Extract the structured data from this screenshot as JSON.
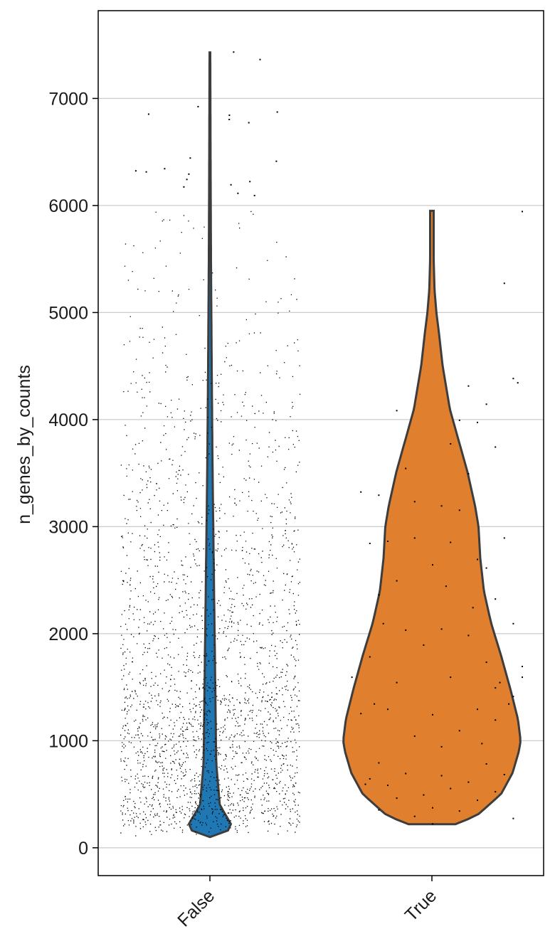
{
  "chart_data": {
    "type": "violin",
    "ylabel": "n_genes_by_counts",
    "xlabel": "",
    "title": "",
    "categories": [
      "False",
      "True"
    ],
    "ylim": [
      -260,
      7820
    ],
    "yticks": [
      0,
      1000,
      2000,
      3000,
      4000,
      5000,
      6000,
      7000
    ],
    "grid": "horizontal",
    "legend": "none",
    "colors": {
      "False": "#1f77b4",
      "True": "#e07f2d",
      "outline": "#3d3d3d",
      "points": "#000000"
    },
    "series": [
      {
        "name": "False",
        "min": 100,
        "max": 7430,
        "point_count": 30000,
        "point_density": [
          [
            200,
            1.0
          ],
          [
            1400,
            1.0
          ],
          [
            1600,
            0.55
          ],
          [
            2000,
            0.5
          ],
          [
            2500,
            0.42
          ],
          [
            3000,
            0.32
          ],
          [
            3500,
            0.24
          ],
          [
            4000,
            0.17
          ],
          [
            4500,
            0.11
          ],
          [
            5000,
            0.07
          ],
          [
            5500,
            0.045
          ],
          [
            6000,
            0.03
          ]
        ],
        "outliers": [
          6320,
          6250,
          6780,
          6850,
          6880,
          6860,
          6200,
          6350,
          7440,
          7370,
          6930,
          6810,
          6330,
          6180,
          6450,
          6420,
          6300,
          6230,
          6100,
          6120
        ],
        "violin_profile": [
          [
            100,
            0.0
          ],
          [
            120,
            0.15
          ],
          [
            200,
            0.25
          ],
          [
            400,
            0.11
          ],
          [
            800,
            0.07
          ],
          [
            1500,
            0.06
          ],
          [
            2500,
            0.045
          ],
          [
            3500,
            0.03
          ],
          [
            4500,
            0.02
          ],
          [
            5500,
            0.012
          ],
          [
            6500,
            0.007
          ],
          [
            7430,
            0.004
          ]
        ]
      },
      {
        "name": "True",
        "min": 220,
        "max": 5950,
        "point_count": 150,
        "violin_profile": [
          [
            220,
            0.26
          ],
          [
            300,
            0.5
          ],
          [
            500,
            0.77
          ],
          [
            700,
            0.9
          ],
          [
            900,
            0.97
          ],
          [
            1000,
            0.99
          ],
          [
            1200,
            0.96
          ],
          [
            1500,
            0.87
          ],
          [
            1800,
            0.77
          ],
          [
            2100,
            0.66
          ],
          [
            2400,
            0.58
          ],
          [
            2700,
            0.54
          ],
          [
            3000,
            0.52
          ],
          [
            3200,
            0.48
          ],
          [
            3500,
            0.4
          ],
          [
            3800,
            0.3
          ],
          [
            4100,
            0.2
          ],
          [
            4500,
            0.12
          ],
          [
            4800,
            0.08
          ],
          [
            5000,
            0.05
          ],
          [
            5200,
            0.03
          ],
          [
            5500,
            0.02
          ],
          [
            5800,
            0.02
          ],
          [
            5950,
            0.02
          ]
        ],
        "points": [
          [
            1,
            5950
          ],
          [
            -0.8,
            3330
          ],
          [
            -0.9,
            1600
          ],
          [
            1.0,
            1600
          ],
          [
            1.0,
            1700
          ],
          [
            0.9,
            2100
          ],
          [
            0.85,
            1350
          ],
          [
            0.7,
            1500
          ],
          [
            0.9,
            4390
          ],
          [
            0.95,
            4350
          ],
          [
            0.8,
            5280
          ],
          [
            -0.4,
            4090
          ],
          [
            0.6,
            4150
          ],
          [
            0.4,
            4320
          ],
          [
            0.3,
            4000
          ],
          [
            0.5,
            3980
          ],
          [
            0.7,
            3750
          ],
          [
            -0.3,
            3550
          ],
          [
            -0.6,
            3300
          ],
          [
            0.8,
            2900
          ],
          [
            -0.7,
            2850
          ],
          [
            0.2,
            3780
          ],
          [
            0.4,
            3500
          ],
          [
            -0.2,
            3240
          ],
          [
            0.1,
            3200
          ],
          [
            0.3,
            3160
          ],
          [
            0.6,
            2620
          ],
          [
            -0.5,
            2870
          ],
          [
            -0.4,
            2500
          ],
          [
            -0.2,
            2900
          ],
          [
            0.2,
            2860
          ],
          [
            0.5,
            2700
          ],
          [
            0.0,
            2650
          ],
          [
            -0.6,
            2370
          ],
          [
            0.7,
            2330
          ],
          [
            -0.3,
            2040
          ],
          [
            0.1,
            2050
          ],
          [
            0.4,
            1990
          ],
          [
            -0.1,
            1900
          ],
          [
            -0.7,
            1790
          ],
          [
            0.6,
            1740
          ],
          [
            0.2,
            1600
          ],
          [
            -0.4,
            1550
          ],
          [
            0.9,
            1420
          ],
          [
            -0.5,
            1300
          ],
          [
            0.5,
            1300
          ],
          [
            0.0,
            1250
          ],
          [
            -0.8,
            1260
          ],
          [
            0.7,
            1200
          ],
          [
            0.3,
            1100
          ],
          [
            -0.2,
            1050
          ],
          [
            0.1,
            950
          ],
          [
            0.55,
            980
          ],
          [
            -0.6,
            800
          ],
          [
            0.6,
            790
          ],
          [
            0.8,
            690
          ],
          [
            -0.3,
            700
          ],
          [
            0.1,
            680
          ],
          [
            -0.7,
            650
          ],
          [
            0.4,
            620
          ],
          [
            -0.5,
            590
          ],
          [
            0.2,
            560
          ],
          [
            0.7,
            530
          ],
          [
            -0.1,
            500
          ],
          [
            -0.4,
            470
          ],
          [
            0.5,
            450
          ],
          [
            0.0,
            380
          ],
          [
            -0.6,
            360
          ],
          [
            0.3,
            350
          ],
          [
            0.9,
            280
          ],
          [
            -0.2,
            300
          ],
          [
            0.0,
            230
          ],
          [
            -0.75,
            600
          ],
          [
            -0.65,
            1350
          ],
          [
            0.75,
            1550
          ],
          [
            -0.55,
            2100
          ],
          [
            0.45,
            2250
          ],
          [
            0.15,
            2450
          ]
        ]
      }
    ]
  }
}
